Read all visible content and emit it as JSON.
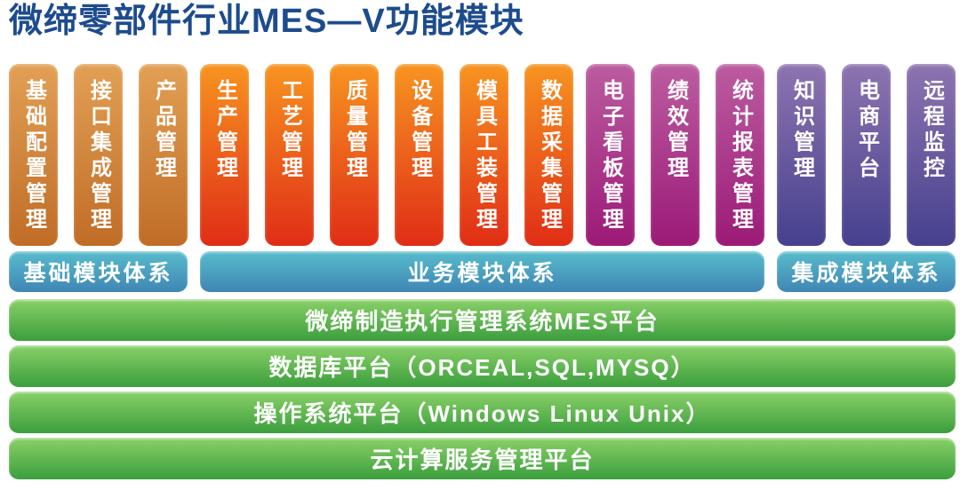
{
  "title": "微缔零部件行业MES—V功能模块",
  "groups": [
    {
      "theme": "orange",
      "columns": [
        "基础配置管理",
        "接口集成管理",
        "产品管理"
      ]
    },
    {
      "theme": "red",
      "columns": [
        "生产管理",
        "工艺管理",
        "质量管理",
        "设备管理",
        "模具工装管理",
        "数据采集管理"
      ]
    },
    {
      "theme": "magenta",
      "columns": [
        "电子看板管理",
        "绩效管理",
        "统计报表管理"
      ]
    },
    {
      "theme": "purple",
      "columns": [
        "知识管理",
        "电商平台",
        "远程监控"
      ]
    }
  ],
  "tiers": [
    {
      "label": "基础模块体系"
    },
    {
      "label": "业务模块体系"
    },
    {
      "label": "集成模块体系"
    }
  ],
  "platforms": [
    {
      "label": "微缔制造执行管理系统MES平台"
    },
    {
      "label": "数据库平台（ORCEAL,SQL,MYSQ）"
    },
    {
      "label": "操作系统平台（Windows Linux Unix）"
    },
    {
      "label": "云计算服务管理平台"
    }
  ],
  "colors": {
    "title": "#1d4c8d",
    "orange": [
      "#e2a055",
      "#c06c26"
    ],
    "red": [
      "#f79420",
      "#e02d16"
    ],
    "magenta": [
      "#bb5ca0",
      "#9c1a77"
    ],
    "purple": [
      "#8d74b0",
      "#46408e"
    ],
    "cyan": [
      "#58bccc",
      "#3f86b4"
    ],
    "green": [
      "#8ad168",
      "#3b9e3d"
    ]
  }
}
